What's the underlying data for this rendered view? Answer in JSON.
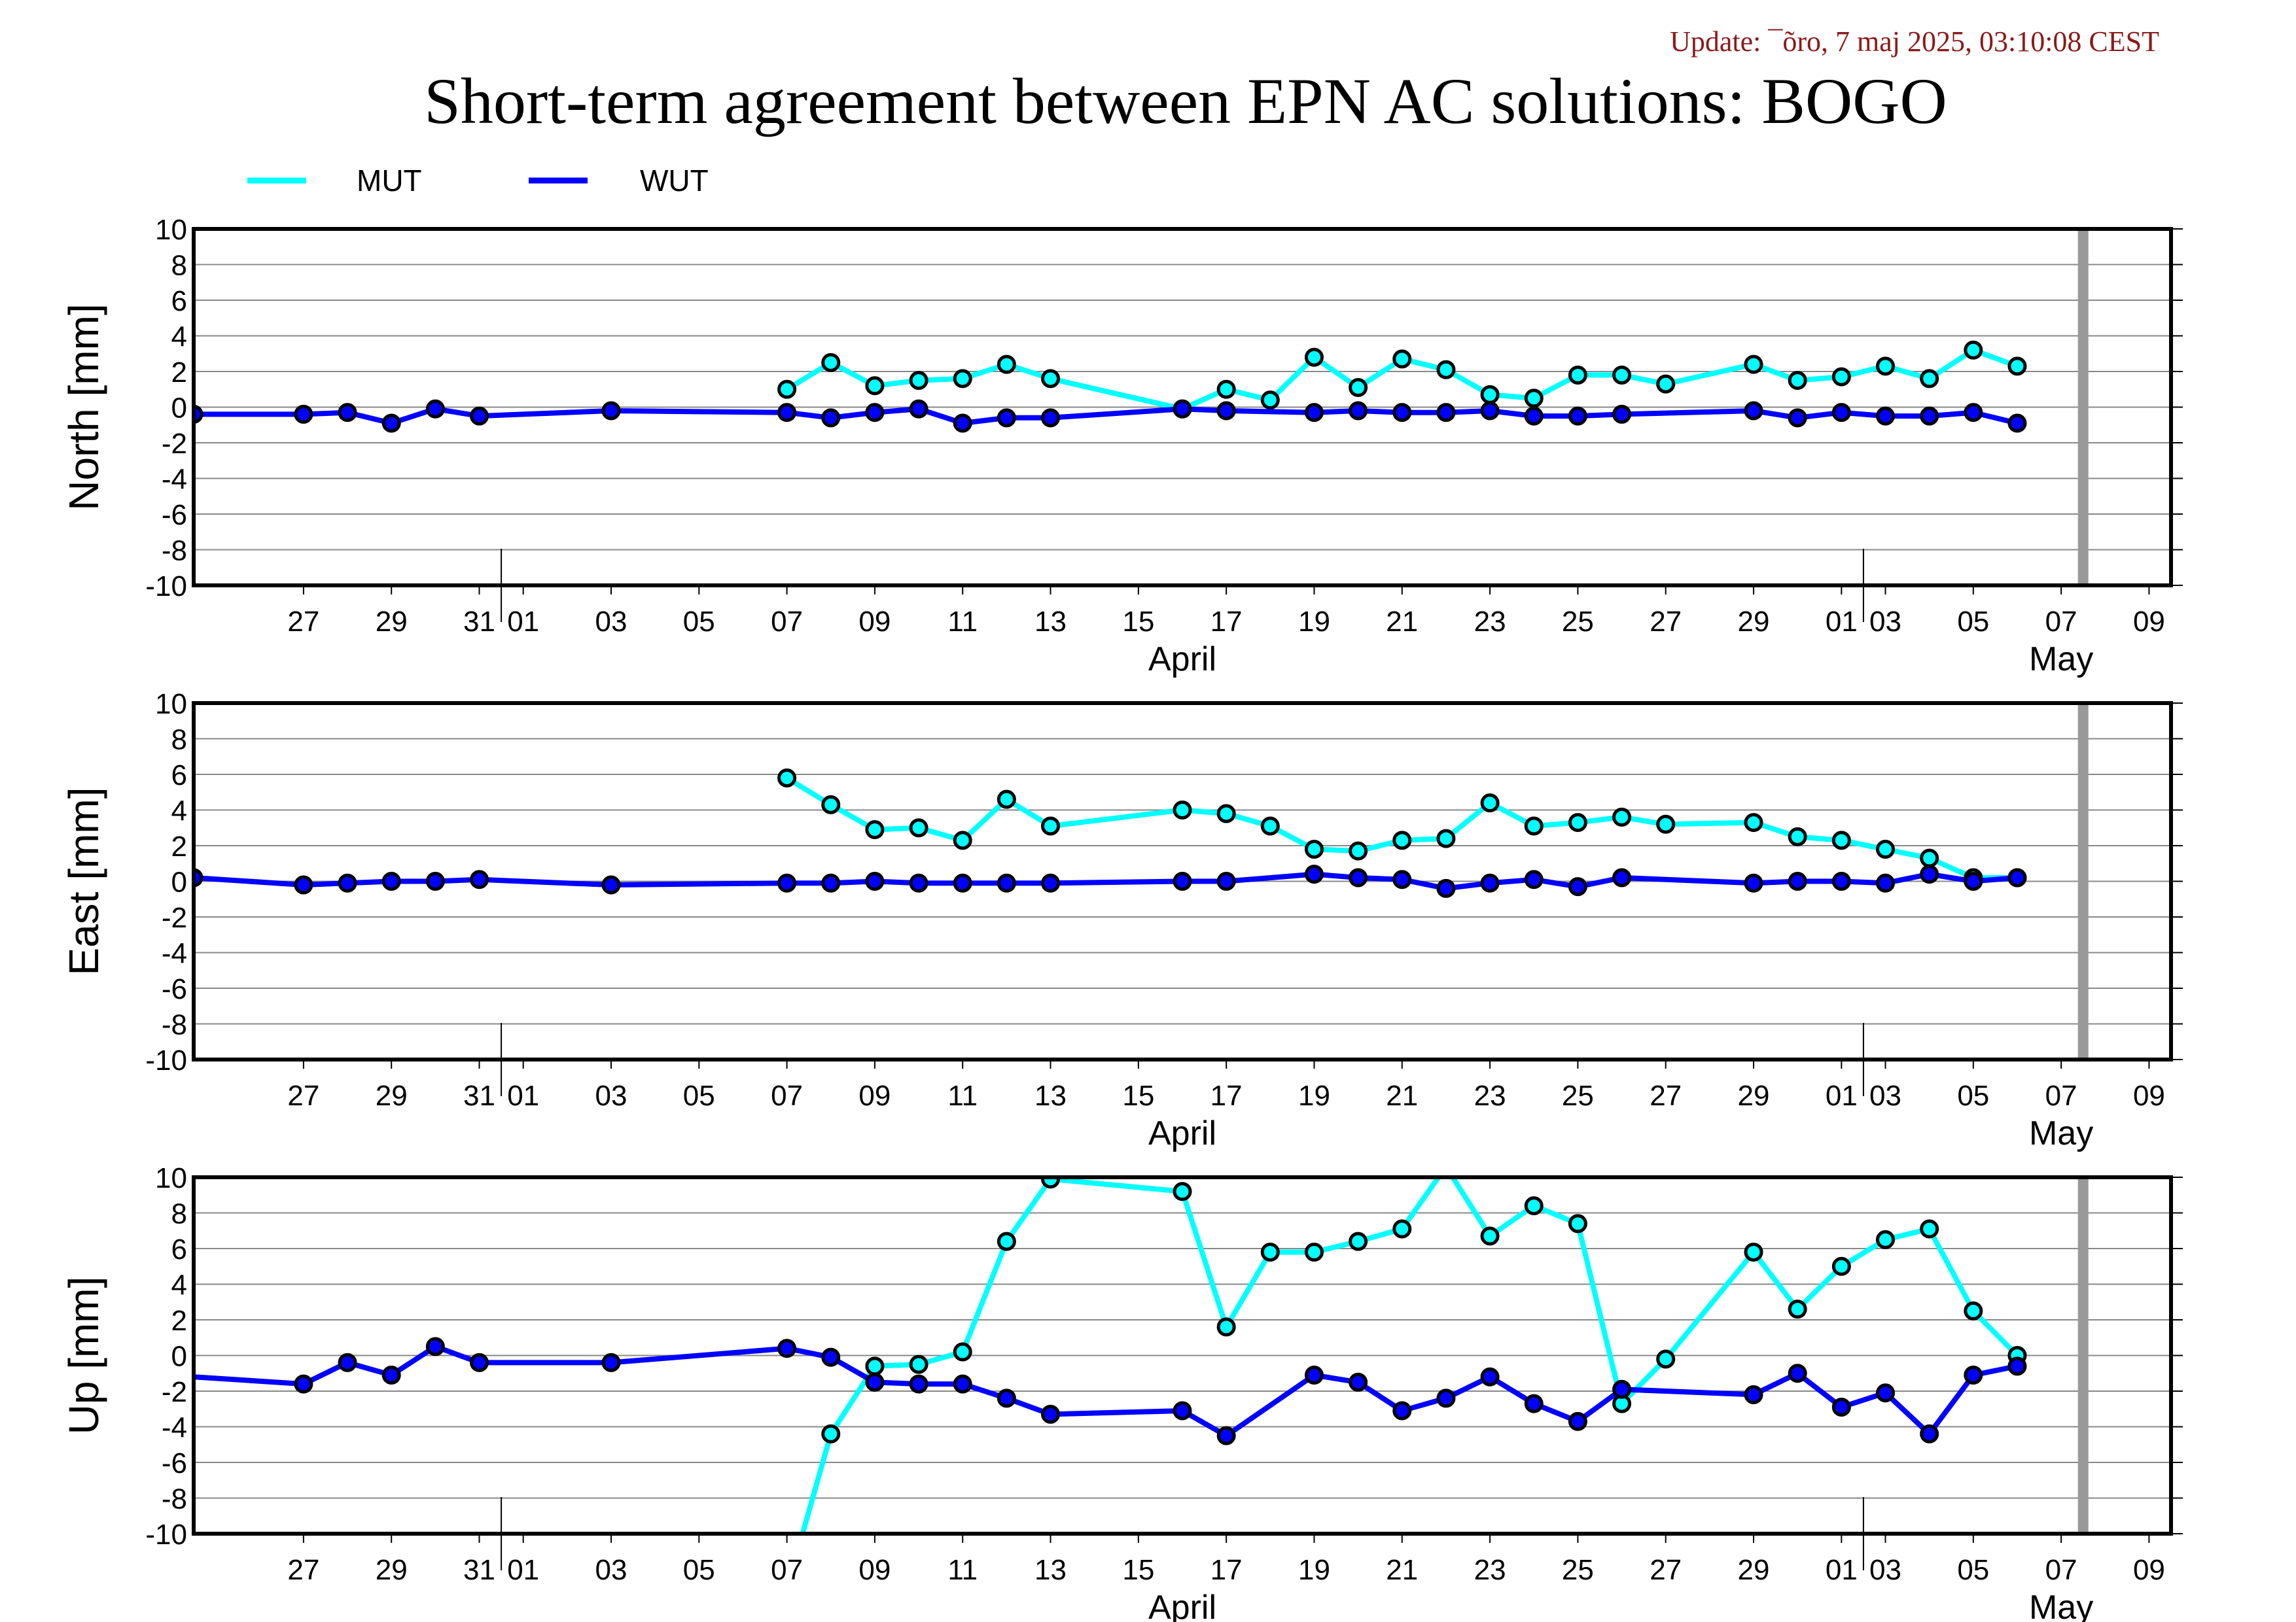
{
  "update_text": "Update: ¯õro, 7 maj 2025, 03:10:08 CEST",
  "title": "Short-term agreement between EPN AC solutions: BOGO",
  "legend": [
    {
      "name": "MUT",
      "color": "#00ffff"
    },
    {
      "name": "WUT",
      "color": "#0000ff"
    }
  ],
  "colors": {
    "marker_outline": "#000000",
    "today_bar": "#999999",
    "grid": "#888888"
  },
  "chart_data": {
    "type": "line",
    "x_axis": {
      "range_days": [
        -1.5,
        43.5
      ],
      "tick_days": [
        1,
        3,
        5,
        6,
        8,
        10,
        12,
        14,
        16,
        18,
        20,
        22,
        24,
        26,
        28,
        30,
        32,
        34,
        36,
        37,
        39,
        41,
        43
      ],
      "tick_labels": [
        "27",
        "29",
        "31",
        "01",
        "03",
        "05",
        "07",
        "09",
        "11",
        "13",
        "15",
        "17",
        "19",
        "21",
        "23",
        "25",
        "27",
        "29",
        "01",
        "03",
        "05",
        "07",
        "09"
      ],
      "month_labels": [
        {
          "text": "April",
          "day": 21
        },
        {
          "text": "May",
          "day": 41
        }
      ],
      "month_separators": [
        5.5,
        36.5
      ],
      "day_reference": "day 0 = 2025-03-26",
      "today_marker_day": 41.5
    },
    "panels": [
      {
        "ylabel": "North [mm]",
        "ylim": [
          -10,
          10
        ],
        "yticks": [
          "10",
          "8",
          "6",
          "4",
          "2",
          "0",
          "-2",
          "-4",
          "-6",
          "-8",
          "-10"
        ],
        "series": [
          {
            "name": "MUT",
            "color": "#00ffff",
            "x": [
              12,
              13,
              14,
              15,
              16,
              17,
              18,
              21,
              22,
              23,
              24,
              25,
              26,
              27,
              28,
              29,
              30,
              31,
              32,
              34,
              35,
              36,
              37,
              38,
              39,
              40
            ],
            "y": [
              1.0,
              2.5,
              1.2,
              1.5,
              1.6,
              2.4,
              1.6,
              -0.1,
              1.0,
              0.4,
              2.8,
              1.1,
              2.7,
              2.1,
              0.7,
              0.5,
              1.8,
              1.8,
              1.3,
              2.4,
              1.5,
              1.7,
              2.3,
              1.6,
              3.2,
              2.3
            ],
            "markers": true
          },
          {
            "name": "WUT",
            "color": "#0000ff",
            "x": [
              -1.5,
              1,
              2,
              3,
              4,
              5,
              8,
              12,
              13,
              14,
              15,
              16,
              17,
              18,
              21,
              22,
              24,
              25,
              26,
              27,
              28,
              29,
              30,
              31,
              34,
              35,
              36,
              37,
              38,
              39,
              40
            ],
            "y": [
              -0.4,
              -0.4,
              -0.3,
              -0.9,
              -0.1,
              -0.5,
              -0.2,
              -0.3,
              -0.6,
              -0.3,
              -0.1,
              -0.9,
              -0.6,
              -0.6,
              -0.1,
              -0.2,
              -0.3,
              -0.2,
              -0.3,
              -0.3,
              -0.2,
              -0.5,
              -0.5,
              -0.4,
              -0.2,
              -0.6,
              -0.3,
              -0.5,
              -0.5,
              -0.3,
              -0.9
            ],
            "markers": true
          }
        ]
      },
      {
        "ylabel": "East [mm]",
        "ylim": [
          -10,
          10
        ],
        "yticks": [
          "10",
          "8",
          "6",
          "4",
          "2",
          "0",
          "-2",
          "-4",
          "-6",
          "-8",
          "-10"
        ],
        "series": [
          {
            "name": "MUT",
            "color": "#00ffff",
            "x": [
              12,
              13,
              14,
              15,
              16,
              17,
              18,
              21,
              22,
              23,
              24,
              25,
              26,
              27,
              28,
              29,
              30,
              31,
              32,
              34,
              35,
              36,
              37,
              38,
              39,
              40
            ],
            "y": [
              5.8,
              4.3,
              2.9,
              3.0,
              2.3,
              4.6,
              3.1,
              4.0,
              3.8,
              3.1,
              1.8,
              1.7,
              2.3,
              2.4,
              4.4,
              3.1,
              3.3,
              3.6,
              3.2,
              3.3,
              2.5,
              2.3,
              1.8,
              1.3,
              0.2,
              0.2
            ],
            "markers": true
          },
          {
            "name": "WUT",
            "color": "#0000ff",
            "x": [
              -1.5,
              1,
              2,
              3,
              4,
              5,
              8,
              12,
              13,
              14,
              15,
              16,
              17,
              18,
              21,
              22,
              24,
              25,
              26,
              27,
              28,
              29,
              30,
              31,
              34,
              35,
              36,
              37,
              38,
              39,
              40
            ],
            "y": [
              0.2,
              -0.2,
              -0.1,
              0.0,
              0.0,
              0.1,
              -0.2,
              -0.1,
              -0.1,
              0.0,
              -0.1,
              -0.1,
              -0.1,
              -0.1,
              0.0,
              0.0,
              0.4,
              0.2,
              0.1,
              -0.4,
              -0.1,
              0.1,
              -0.3,
              0.2,
              -0.1,
              0.0,
              0.0,
              -0.1,
              0.4,
              0.0,
              0.2
            ],
            "markers": true
          }
        ]
      },
      {
        "ylabel": "Up [mm]",
        "ylim": [
          -10,
          10
        ],
        "yticks": [
          "10",
          "8",
          "6",
          "4",
          "2",
          "0",
          "-2",
          "-4",
          "-6",
          "-8",
          "-10"
        ],
        "series": [
          {
            "name": "MUT",
            "color": "#00ffff",
            "x": [
              12.3,
              13,
              14,
              15,
              16,
              17,
              18,
              21,
              22,
              23,
              24,
              25,
              26,
              27,
              28,
              29,
              30,
              31,
              32,
              34,
              35,
              36,
              37,
              38,
              39,
              40
            ],
            "y": [
              -10.5,
              -4.4,
              -0.6,
              -0.5,
              0.2,
              6.4,
              9.9,
              9.2,
              1.6,
              5.8,
              5.8,
              6.4,
              7.1,
              10.6,
              6.7,
              8.4,
              7.4,
              -2.7,
              -0.2,
              5.8,
              2.6,
              5.0,
              6.5,
              7.1,
              2.5,
              0.0
            ],
            "markers": true,
            "hidden_markers": [
              0,
              13
            ]
          },
          {
            "name": "WUT",
            "color": "#0000ff",
            "x": [
              -1.5,
              1,
              2,
              3,
              4,
              5,
              8,
              12,
              13,
              14,
              15,
              16,
              17,
              18,
              21,
              22,
              24,
              25,
              26,
              27,
              28,
              29,
              30,
              31,
              34,
              35,
              36,
              37,
              38,
              39,
              40
            ],
            "y": [
              -1.2,
              -1.6,
              -0.4,
              -1.1,
              0.5,
              -0.4,
              -0.4,
              0.4,
              -0.1,
              -1.5,
              -1.6,
              -1.6,
              -2.4,
              -3.3,
              -3.1,
              -4.5,
              -1.1,
              -1.5,
              -3.1,
              -2.4,
              -1.2,
              -2.7,
              -3.7,
              -1.9,
              -2.2,
              -1.0,
              -2.9,
              -2.1,
              -4.4,
              -1.1,
              -0.6
            ],
            "markers": true,
            "hidden_markers": [
              0
            ]
          }
        ]
      }
    ]
  }
}
